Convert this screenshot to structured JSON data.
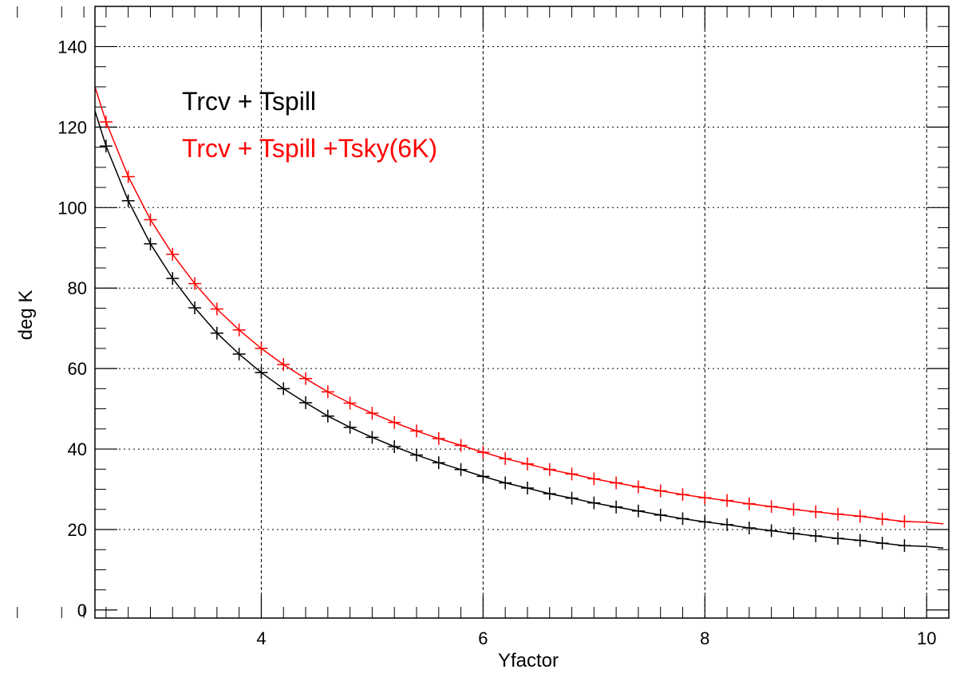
{
  "chart_data": {
    "type": "line",
    "title": "",
    "xlabel": "Yfactor",
    "ylabel": "deg K",
    "xlim": [
      2.5,
      10.2
    ],
    "ylim": [
      -2,
      150
    ],
    "x_ticks": [
      4,
      6,
      8,
      10
    ],
    "y_ticks": [
      0,
      20,
      40,
      60,
      80,
      100,
      120,
      140
    ],
    "grid": true,
    "legend_position": "top-left",
    "series": [
      {
        "name": "Trcv + Tspill",
        "color": "#000000",
        "marker": "plus",
        "x": [
          2.6,
          2.8,
          3.0,
          3.2,
          3.4,
          3.6,
          3.8,
          4.0,
          4.2,
          4.4,
          4.6,
          4.8,
          5.0,
          5.2,
          5.4,
          5.6,
          5.8,
          6.0,
          6.2,
          6.4,
          6.6,
          6.8,
          7.0,
          7.2,
          7.4,
          7.6,
          7.8,
          8.0,
          8.2,
          8.4,
          8.6,
          8.8,
          9.0,
          9.2,
          9.4,
          9.6,
          9.8
        ],
        "values": [
          115.3,
          101.7,
          91.0,
          82.4,
          75.1,
          68.8,
          63.6,
          59.0,
          55.0,
          51.5,
          48.2,
          45.4,
          42.9,
          40.6,
          38.5,
          36.6,
          34.9,
          33.2,
          31.6,
          30.3,
          28.9,
          27.8,
          26.6,
          25.6,
          24.6,
          23.6,
          22.7,
          21.9,
          21.2,
          20.4,
          19.7,
          19.0,
          18.4,
          17.8,
          17.3,
          16.6,
          16.0
        ],
        "line_x": [
          2.5,
          2.6,
          2.8,
          3.0,
          3.2,
          3.4,
          3.6,
          3.8,
          4.0,
          4.2,
          4.4,
          4.6,
          4.8,
          5.0,
          5.2,
          5.4,
          5.6,
          5.8,
          6.0,
          6.2,
          6.4,
          6.6,
          6.8,
          7.0,
          7.2,
          7.4,
          7.6,
          7.8,
          8.0,
          8.2,
          8.4,
          8.6,
          8.8,
          9.0,
          9.2,
          9.4,
          9.6,
          9.8,
          10.0,
          10.15
        ],
        "line_y": [
          124.0,
          115.3,
          101.7,
          91.0,
          82.4,
          75.1,
          68.8,
          63.6,
          59.0,
          55.0,
          51.5,
          48.2,
          45.4,
          42.9,
          40.6,
          38.5,
          36.6,
          34.9,
          33.2,
          31.6,
          30.3,
          28.9,
          27.8,
          26.6,
          25.6,
          24.6,
          23.6,
          22.7,
          21.9,
          21.2,
          20.4,
          19.7,
          19.0,
          18.4,
          17.8,
          17.3,
          16.6,
          16.0,
          15.8,
          15.4
        ]
      },
      {
        "name": "Trcv + Tspill +Tsky(6K)",
        "color": "#ff0000",
        "marker": "plus",
        "x": [
          2.6,
          2.8,
          3.0,
          3.2,
          3.4,
          3.6,
          3.8,
          4.0,
          4.2,
          4.4,
          4.6,
          4.8,
          5.0,
          5.2,
          5.4,
          5.6,
          5.8,
          6.0,
          6.2,
          6.4,
          6.6,
          6.8,
          7.0,
          7.2,
          7.4,
          7.6,
          7.8,
          8.0,
          8.2,
          8.4,
          8.6,
          8.8,
          9.0,
          9.2,
          9.4,
          9.6,
          9.8
        ],
        "values": [
          121.3,
          107.7,
          97.0,
          88.4,
          81.1,
          74.8,
          69.6,
          65.0,
          61.0,
          57.5,
          54.2,
          51.4,
          48.9,
          46.6,
          44.5,
          42.6,
          40.9,
          39.2,
          37.6,
          36.3,
          34.9,
          33.8,
          32.6,
          31.6,
          30.6,
          29.6,
          28.7,
          27.9,
          27.2,
          26.4,
          25.7,
          25.0,
          24.4,
          23.8,
          23.3,
          22.6,
          22.0
        ],
        "line_x": [
          2.5,
          2.6,
          2.8,
          3.0,
          3.2,
          3.4,
          3.6,
          3.8,
          4.0,
          4.2,
          4.4,
          4.6,
          4.8,
          5.0,
          5.2,
          5.4,
          5.6,
          5.8,
          6.0,
          6.2,
          6.4,
          6.6,
          6.8,
          7.0,
          7.2,
          7.4,
          7.6,
          7.8,
          8.0,
          8.2,
          8.4,
          8.6,
          8.8,
          9.0,
          9.2,
          9.4,
          9.6,
          9.8,
          10.0,
          10.15
        ],
        "line_y": [
          130.0,
          121.3,
          107.7,
          97.0,
          88.4,
          81.1,
          74.8,
          69.6,
          65.0,
          61.0,
          57.5,
          54.2,
          51.4,
          48.9,
          46.6,
          44.5,
          42.6,
          40.9,
          39.2,
          37.6,
          36.3,
          34.9,
          33.8,
          32.6,
          31.6,
          30.6,
          29.6,
          28.7,
          27.9,
          27.2,
          26.4,
          25.7,
          25.0,
          24.4,
          23.8,
          23.3,
          22.6,
          22.0,
          21.8,
          21.4
        ]
      }
    ]
  }
}
